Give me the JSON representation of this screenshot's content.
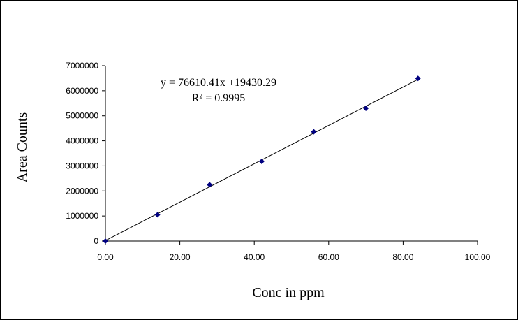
{
  "chart_data": {
    "type": "scatter",
    "xlabel": "Conc in ppm",
    "ylabel": "Area Counts",
    "xlim": [
      0,
      100
    ],
    "ylim": [
      0,
      7000000
    ],
    "x_ticks": [
      "0.00",
      "20.00",
      "40.00",
      "60.00",
      "80.00",
      "100.00"
    ],
    "y_ticks": [
      "0",
      "1000000",
      "2000000",
      "3000000",
      "4000000",
      "5000000",
      "6000000",
      "7000000"
    ],
    "series": [
      {
        "x": [
          0,
          14,
          28,
          42,
          56,
          70,
          84
        ],
        "y": [
          0,
          1050000,
          2250000,
          3180000,
          4360000,
          5300000,
          6490000
        ],
        "color": "#000080",
        "marker": "diamond"
      }
    ],
    "trendline": {
      "slope": 76610.41,
      "intercept": 19430.29,
      "x_range": [
        0,
        84
      ],
      "color": "#000000"
    },
    "annotations": {
      "equation": "y = 76610.41x +19430.29",
      "r_squared": "R² = 0.9995"
    },
    "grid": false,
    "legend": "none"
  }
}
